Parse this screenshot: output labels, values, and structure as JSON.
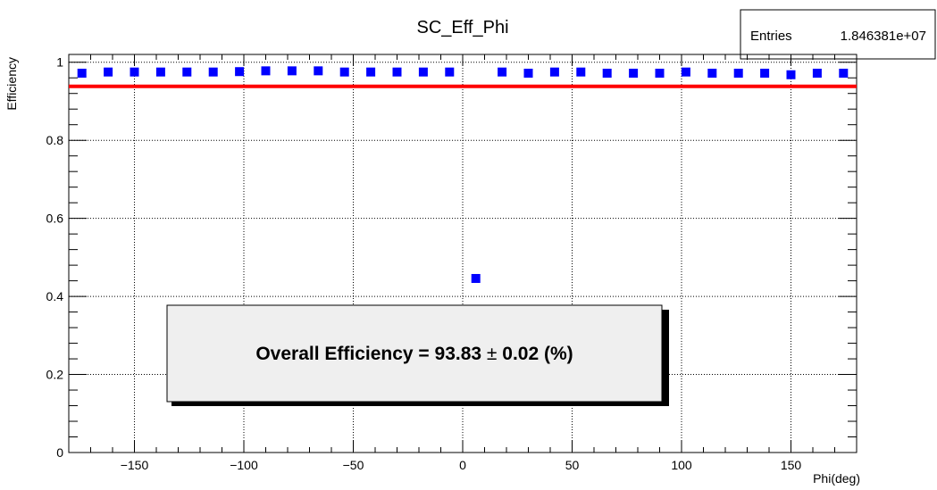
{
  "chart_data": {
    "type": "scatter",
    "title": "SC_Eff_Phi",
    "xlabel": "Phi(deg)",
    "ylabel": "Efficiency",
    "xlim": [
      -180,
      180
    ],
    "ylim": [
      0,
      1.02
    ],
    "x_ticks": [
      -150,
      -100,
      -50,
      0,
      50,
      100,
      150
    ],
    "x_tick_labels": [
      "−150",
      "−100",
      "−50",
      "0",
      "50",
      "100",
      "150"
    ],
    "y_ticks": [
      0,
      0.2,
      0.4,
      0.6,
      0.8,
      1
    ],
    "y_tick_labels": [
      "0",
      "0.2",
      "0.4",
      "0.6",
      "0.8",
      "1"
    ],
    "grid": true,
    "marker_color": "#0000ff",
    "series": [
      {
        "x": [
          -174,
          -162,
          -150,
          -138,
          -126,
          -114,
          -102,
          -90,
          -78,
          -66,
          -54,
          -42,
          -30,
          -18,
          -6,
          6,
          18,
          30,
          42,
          54,
          66,
          78,
          90,
          102,
          114,
          126,
          138,
          150,
          162,
          174
        ],
        "y": [
          0.972,
          0.975,
          0.975,
          0.975,
          0.975,
          0.975,
          0.976,
          0.978,
          0.978,
          0.978,
          0.975,
          0.975,
          0.975,
          0.975,
          0.975,
          0.446,
          0.975,
          0.972,
          0.975,
          0.975,
          0.972,
          0.972,
          0.972,
          0.975,
          0.972,
          0.972,
          0.972,
          0.968,
          0.972,
          0.972
        ]
      }
    ],
    "reference_line": {
      "y": 0.9383,
      "color": "#ff0000"
    },
    "stats_box": {
      "label": "Entries",
      "value": "1.846381e+07"
    },
    "annotation": {
      "prefix": "Overall Efficiency  = 93.83 ",
      "pm": "±",
      "suffix": " 0.02 (%)"
    }
  }
}
